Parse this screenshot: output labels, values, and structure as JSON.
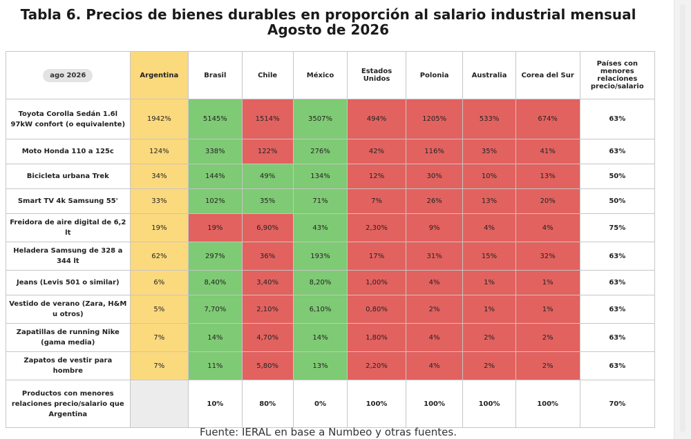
{
  "title": {
    "line1": "Tabla 6. Precios de bienes durables en proporción al salario industrial mensual",
    "line2": "Agosto de 2026"
  },
  "header": {
    "period": "ago 2026",
    "columns": [
      "Argentina",
      "Brasil",
      "Chile",
      "México",
      "Estados Unidos",
      "Polonia",
      "Australia",
      "Corea del Sur"
    ],
    "last": "Países con menores relaciones precio/salario"
  },
  "rows": [
    {
      "label": "Toyota Corolla Sedán 1.6l 97kW confort (o equivalente)",
      "values": [
        "1942%",
        "5145%",
        "1514%",
        "3507%",
        "494%",
        "1205%",
        "533%",
        "674%"
      ],
      "colors": [
        "y",
        "g",
        "r",
        "g",
        "r",
        "r",
        "r",
        "r"
      ],
      "pct": "63%"
    },
    {
      "label": "Moto Honda 110 a 125c",
      "values": [
        "124%",
        "338%",
        "122%",
        "276%",
        "42%",
        "116%",
        "35%",
        "41%"
      ],
      "colors": [
        "y",
        "g",
        "r",
        "g",
        "r",
        "r",
        "r",
        "r"
      ],
      "pct": "63%"
    },
    {
      "label": "Bicicleta urbana Trek",
      "values": [
        "34%",
        "144%",
        "49%",
        "134%",
        "12%",
        "30%",
        "10%",
        "13%"
      ],
      "colors": [
        "y",
        "g",
        "g",
        "g",
        "r",
        "r",
        "r",
        "r"
      ],
      "pct": "50%"
    },
    {
      "label": "Smart TV 4k Samsung 55'",
      "values": [
        "33%",
        "102%",
        "35%",
        "71%",
        "7%",
        "26%",
        "13%",
        "20%"
      ],
      "colors": [
        "y",
        "g",
        "g",
        "g",
        "r",
        "r",
        "r",
        "r"
      ],
      "pct": "50%"
    },
    {
      "label": "Freidora de aire digital de 6,2 lt",
      "values": [
        "19%",
        "19%",
        "6,90%",
        "43%",
        "2,30%",
        "9%",
        "4%",
        "4%"
      ],
      "colors": [
        "y",
        "r",
        "r",
        "g",
        "r",
        "r",
        "r",
        "r"
      ],
      "pct": "75%"
    },
    {
      "label": "Heladera Samsung de 328 a 344 lt",
      "values": [
        "62%",
        "297%",
        "36%",
        "193%",
        "17%",
        "31%",
        "15%",
        "32%"
      ],
      "colors": [
        "y",
        "g",
        "r",
        "g",
        "r",
        "r",
        "r",
        "r"
      ],
      "pct": "63%"
    },
    {
      "label": "Jeans (Levis 501 o similar)",
      "values": [
        "6%",
        "8,40%",
        "3,40%",
        "8,20%",
        "1,00%",
        "4%",
        "1%",
        "1%"
      ],
      "colors": [
        "y",
        "g",
        "r",
        "g",
        "r",
        "r",
        "r",
        "r"
      ],
      "pct": "63%"
    },
    {
      "label": "Vestido de verano (Zara, H&M u otros)",
      "values": [
        "5%",
        "7,70%",
        "2,10%",
        "6,10%",
        "0,80%",
        "2%",
        "1%",
        "1%"
      ],
      "colors": [
        "y",
        "g",
        "r",
        "g",
        "r",
        "r",
        "r",
        "r"
      ],
      "pct": "63%"
    },
    {
      "label": "Zapatillas de running Nike (gama media)",
      "values": [
        "7%",
        "14%",
        "4,70%",
        "14%",
        "1,80%",
        "4%",
        "2%",
        "2%"
      ],
      "colors": [
        "y",
        "g",
        "r",
        "g",
        "r",
        "r",
        "r",
        "r"
      ],
      "pct": "63%"
    },
    {
      "label": "Zapatos de vestir para hombre",
      "values": [
        "7%",
        "11%",
        "5,80%",
        "13%",
        "2,20%",
        "4%",
        "2%",
        "2%"
      ],
      "colors": [
        "y",
        "g",
        "r",
        "g",
        "r",
        "r",
        "r",
        "r"
      ],
      "pct": "63%"
    }
  ],
  "summary": {
    "label": "Productos con menores relaciones precio/salario que Argentina",
    "values": [
      "",
      "10%",
      "80%",
      "0%",
      "100%",
      "100%",
      "100%",
      "100%"
    ],
    "pct": "70%"
  },
  "source": "Fuente: IERAL en base a Numbeo y otras fuentes.",
  "colors": {
    "yellow": "#fbd97d",
    "green": "#7fca74",
    "red": "#e2625f",
    "empty": "#ececec"
  }
}
